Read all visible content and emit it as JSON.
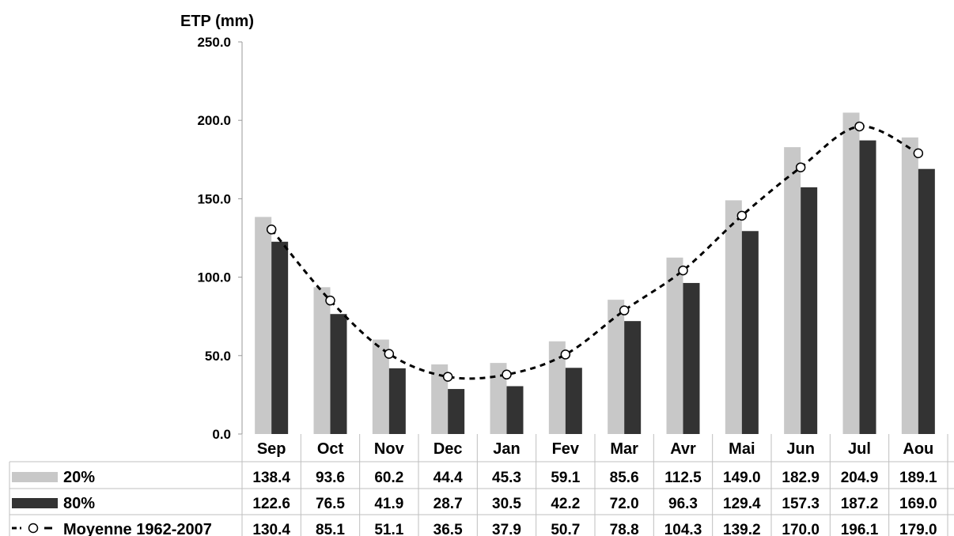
{
  "chart_data": {
    "type": "bar",
    "ylabel": "ETP (mm)",
    "ylim": [
      0,
      250
    ],
    "yticks": [
      0,
      50,
      100,
      150,
      200,
      250
    ],
    "ytick_labels": [
      "0.0",
      "50.0",
      "100.0",
      "150.0",
      "200.0",
      "250.0"
    ],
    "grid": false,
    "legend": "data-table-below",
    "categories": [
      "Sep",
      "Oct",
      "Nov",
      "Dec",
      "Jan",
      "Fev",
      "Mar",
      "Avr",
      "Mai",
      "Jun",
      "Jul",
      "Aou"
    ],
    "series": [
      {
        "name": "20%",
        "kind": "bar",
        "color": "#c8c8c8",
        "values": [
          138.4,
          93.6,
          60.2,
          44.4,
          45.3,
          59.1,
          85.6,
          112.5,
          149.0,
          182.9,
          204.9,
          189.1
        ],
        "labels": [
          "138.4",
          "93.6",
          "60.2",
          "44.4",
          "45.3",
          "59.1",
          "85.6",
          "112.5",
          "149.0",
          "182.9",
          "204.9",
          "189.1"
        ]
      },
      {
        "name": "80%",
        "kind": "bar",
        "color": "#333333",
        "values": [
          122.6,
          76.5,
          41.9,
          28.7,
          30.5,
          42.2,
          72.0,
          96.3,
          129.4,
          157.3,
          187.2,
          169.0
        ],
        "labels": [
          "122.6",
          "76.5",
          "41.9",
          "28.7",
          "30.5",
          "42.2",
          "72.0",
          "96.3",
          "129.4",
          "157.3",
          "187.2",
          "169.0"
        ]
      },
      {
        "name": "Moyenne 1962-2007",
        "kind": "line",
        "style": "dashed-with-open-circles",
        "color": "#000000",
        "values": [
          130.4,
          85.1,
          51.1,
          36.5,
          37.9,
          50.7,
          78.8,
          104.3,
          139.2,
          170.0,
          196.1,
          179.0
        ],
        "labels": [
          "130.4",
          "85.1",
          "51.1",
          "36.5",
          "37.9",
          "50.7",
          "78.8",
          "104.3",
          "139.2",
          "170.0",
          "196.1",
          "179.0"
        ]
      }
    ]
  }
}
